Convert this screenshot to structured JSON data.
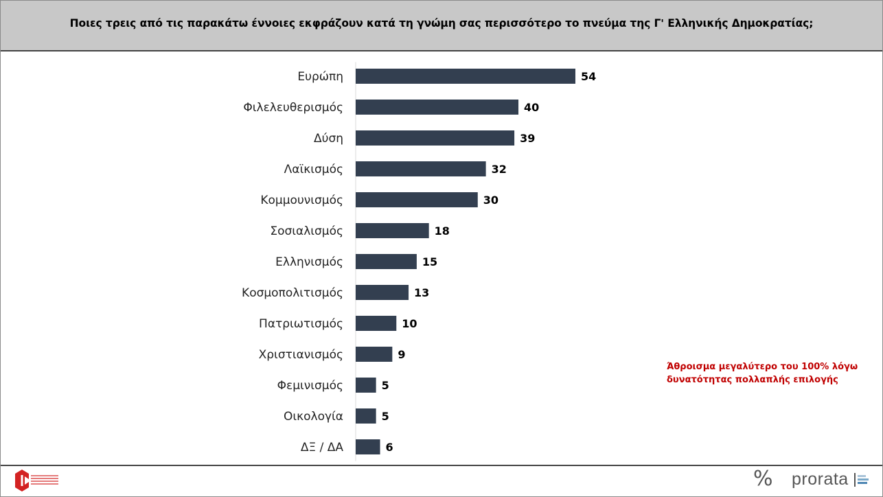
{
  "title": "Ποιες τρεις από τις παρακάτω έννοιες εκφράζουν κατά τη γνώμη σας περισσότερο το πνεύμα της Γ' Ελληνικής Δημοκρατίας;",
  "note": {
    "line1": "Άθροισμα μεγαλύτερο του 100% λόγω",
    "line2": "δυνατότητας πολλαπλής επιλογής"
  },
  "footer": {
    "percent_logo": "%",
    "brand": "prorata"
  },
  "colors": {
    "bar": "#333f50",
    "header_bg": "#c8c8c8",
    "note": "#c00000"
  },
  "chart_data": {
    "type": "bar",
    "orientation": "horizontal",
    "categories": [
      "Ευρώπη",
      "Φιλελευθερισμός",
      "Δύση",
      "Λαϊκισμός",
      "Κομμουνισμός",
      "Σοσιαλισμός",
      "Ελληνισμός",
      "Κοσμοπολιτισμός",
      "Πατριωτισμός",
      "Χριστιανισμός",
      "Φεμινισμός",
      "Οικολογία",
      "ΔΞ / ΔΑ"
    ],
    "values": [
      54,
      40,
      39,
      32,
      30,
      18,
      15,
      13,
      10,
      9,
      5,
      5,
      6
    ],
    "data_labels": true,
    "xlim": [
      0,
      60
    ],
    "grid": false,
    "legend": "none"
  }
}
